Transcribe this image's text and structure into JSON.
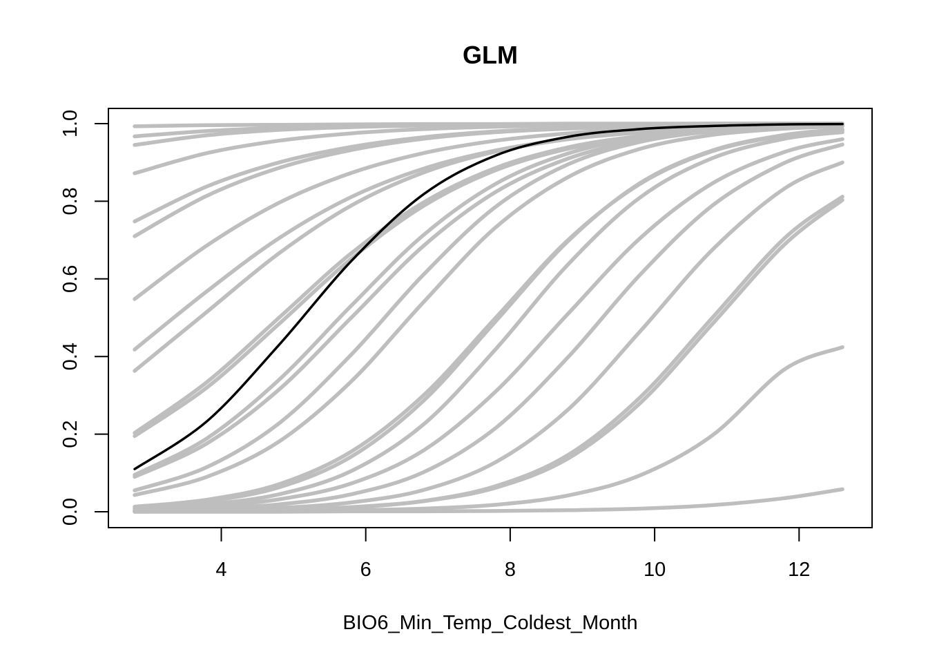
{
  "chart_data": {
    "type": "line",
    "title": "GLM",
    "xlabel": "BIO6_Min_Temp_Coldest_Month",
    "ylabel": "",
    "xlim": [
      2.8,
      12.6
    ],
    "ylim": [
      0,
      1
    ],
    "x_ticks": [
      "4",
      "6",
      "8",
      "10",
      "12"
    ],
    "y_ticks": [
      "0.0",
      "0.2",
      "0.4",
      "0.6",
      "0.8",
      "1.0"
    ],
    "grid": false,
    "colors": {
      "replicate": "#bebebe",
      "mean": "#000000"
    },
    "x": [
      2.8,
      3.8,
      4.8,
      5.8,
      6.8,
      7.8,
      8.8,
      9.8,
      10.8,
      11.8,
      12.6
    ],
    "replicates": [
      {
        "values": [
          0.993,
          0.996,
          0.997,
          0.998,
          0.999,
          0.999,
          1.0,
          1.0,
          1.0,
          1.0,
          1.0
        ]
      },
      {
        "values": [
          0.967,
          0.981,
          0.989,
          0.994,
          0.996,
          0.998,
          0.999,
          0.999,
          1.0,
          1.0,
          1.0
        ]
      },
      {
        "values": [
          0.945,
          0.97,
          0.984,
          0.991,
          0.995,
          0.997,
          0.999,
          0.999,
          1.0,
          1.0,
          1.0
        ]
      },
      {
        "values": [
          0.872,
          0.924,
          0.956,
          0.975,
          0.986,
          0.992,
          0.996,
          0.998,
          0.999,
          0.999,
          1.0
        ]
      },
      {
        "values": [
          0.748,
          0.838,
          0.9,
          0.94,
          0.965,
          0.98,
          0.988,
          0.993,
          0.996,
          0.998,
          0.999
        ]
      },
      {
        "values": [
          0.71,
          0.814,
          0.886,
          0.932,
          0.961,
          0.978,
          0.987,
          0.993,
          0.996,
          0.998,
          0.999
        ]
      },
      {
        "values": [
          0.548,
          0.686,
          0.796,
          0.873,
          0.924,
          0.956,
          0.975,
          0.986,
          0.992,
          0.995,
          0.997
        ]
      },
      {
        "values": [
          0.418,
          0.568,
          0.705,
          0.811,
          0.884,
          0.931,
          0.96,
          0.977,
          0.987,
          0.992,
          0.995
        ]
      },
      {
        "values": [
          0.363,
          0.515,
          0.666,
          0.789,
          0.874,
          0.928,
          0.96,
          0.978,
          0.988,
          0.993,
          0.996
        ]
      },
      {
        "values": [
          0.203,
          0.334,
          0.5,
          0.666,
          0.797,
          0.886,
          0.939,
          0.968,
          0.984,
          0.992,
          0.995
        ]
      },
      {
        "values": [
          0.195,
          0.32,
          0.484,
          0.652,
          0.788,
          0.88,
          0.935,
          0.966,
          0.983,
          0.991,
          0.995
        ]
      },
      {
        "values": [
          0.095,
          0.189,
          0.34,
          0.531,
          0.713,
          0.845,
          0.923,
          0.964,
          0.983,
          0.992,
          0.996
        ]
      },
      {
        "values": [
          0.09,
          0.176,
          0.315,
          0.5,
          0.685,
          0.824,
          0.91,
          0.957,
          0.98,
          0.991,
          0.995
        ]
      },
      {
        "values": [
          0.055,
          0.115,
          0.228,
          0.405,
          0.611,
          0.786,
          0.895,
          0.953,
          0.98,
          0.992,
          0.996
        ]
      },
      {
        "values": [
          0.043,
          0.09,
          0.181,
          0.336,
          0.54,
          0.733,
          0.862,
          0.935,
          0.971,
          0.987,
          0.993
        ]
      },
      {
        "values": [
          0.013,
          0.031,
          0.071,
          0.155,
          0.3,
          0.5,
          0.7,
          0.845,
          0.929,
          0.969,
          0.983
        ]
      },
      {
        "values": [
          0.011,
          0.027,
          0.063,
          0.142,
          0.286,
          0.491,
          0.697,
          0.847,
          0.931,
          0.971,
          0.985
        ]
      },
      {
        "values": [
          0.008,
          0.019,
          0.045,
          0.105,
          0.225,
          0.419,
          0.637,
          0.81,
          0.911,
          0.961,
          0.978
        ]
      },
      {
        "values": [
          0.006,
          0.014,
          0.032,
          0.073,
          0.158,
          0.31,
          0.51,
          0.705,
          0.846,
          0.927,
          0.96
        ]
      },
      {
        "values": [
          0.003,
          0.008,
          0.019,
          0.045,
          0.102,
          0.216,
          0.398,
          0.611,
          0.789,
          0.899,
          0.946
        ]
      },
      {
        "values": [
          0.002,
          0.004,
          0.01,
          0.024,
          0.056,
          0.128,
          0.263,
          0.465,
          0.675,
          0.833,
          0.9
        ]
      },
      {
        "values": [
          0.001,
          0.002,
          0.005,
          0.011,
          0.027,
          0.062,
          0.137,
          0.28,
          0.484,
          0.689,
          0.803
        ]
      },
      {
        "values": [
          0.001,
          0.002,
          0.005,
          0.012,
          0.028,
          0.066,
          0.146,
          0.295,
          0.5,
          0.705,
          0.812
        ]
      },
      {
        "values": [
          0.0,
          0.001,
          0.002,
          0.004,
          0.008,
          0.018,
          0.042,
          0.094,
          0.197,
          0.367,
          0.424
        ]
      },
      {
        "values": [
          0.0,
          0.0,
          0.0,
          0.001,
          0.001,
          0.002,
          0.004,
          0.008,
          0.017,
          0.035,
          0.058
        ]
      }
    ],
    "mean": {
      "values": [
        0.11,
        0.233,
        0.43,
        0.646,
        0.818,
        0.918,
        0.966,
        0.986,
        0.994,
        0.998,
        0.999
      ]
    }
  }
}
